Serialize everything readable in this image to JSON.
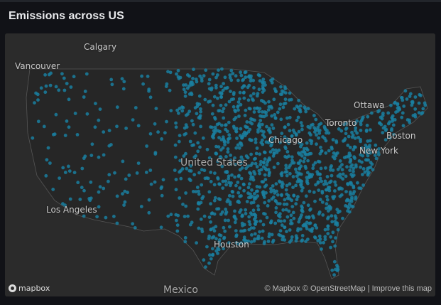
{
  "panel": {
    "title": "Emissions across US"
  },
  "map": {
    "background": "#2b2b2b",
    "land_color": "#252525",
    "dot_color": "#1a7fa0",
    "labels": {
      "calgary": "Calgary",
      "vancouver": "Vancouver",
      "ottawa": "Ottawa",
      "toronto": "Toronto",
      "chicago": "Chicago",
      "boston": "Boston",
      "new_york": "New York",
      "united_states": "United States",
      "los_angeles": "Los Angeles",
      "houston": "Houston",
      "mexico": "Mexico"
    },
    "logo": "mapbox",
    "attribution": {
      "mapbox": "© Mapbox",
      "osm": "© OpenStreetMap",
      "sep": "|",
      "improve": "Improve this map"
    }
  }
}
